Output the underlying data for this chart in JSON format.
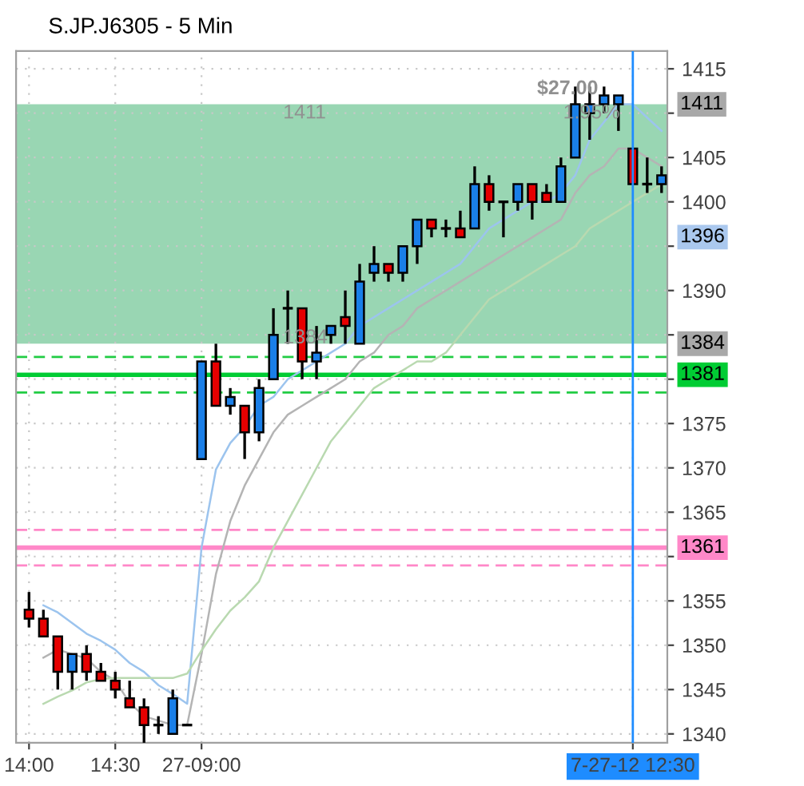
{
  "chart_data": {
    "type": "candlestick",
    "title": "S.JP.J6305 - 5 Min",
    "categories": [
      "14:00",
      null,
      null,
      null,
      null,
      null,
      "14:30",
      null,
      null,
      null,
      null,
      null,
      "27-09:00",
      null,
      null,
      null,
      null,
      null,
      null,
      null,
      null,
      null,
      null,
      null,
      null,
      null,
      null,
      null,
      null,
      null,
      null,
      null,
      null,
      null,
      null,
      null,
      null,
      null,
      null,
      null,
      null,
      null,
      "7-27-12 12:30",
      null,
      null
    ],
    "ohlc": [
      [
        1354,
        1356,
        1352,
        1353
      ],
      [
        1353,
        1354,
        1351,
        1351
      ],
      [
        1351,
        1351,
        1345,
        1347
      ],
      [
        1347,
        1349,
        1345,
        1349
      ],
      [
        1349,
        1350,
        1346,
        1347
      ],
      [
        1347,
        1348,
        1346,
        1346
      ],
      [
        1346,
        1347,
        1344,
        1345
      ],
      [
        1344,
        1346,
        1343,
        1343
      ],
      [
        1343,
        1344,
        1339,
        1341
      ],
      [
        1341,
        1342,
        1340,
        1341
      ],
      [
        1340,
        1345,
        1340,
        1344
      ],
      [
        1341,
        1341,
        1341,
        1341
      ],
      [
        1371,
        1382,
        1371,
        1382
      ],
      [
        1382,
        1384,
        1377,
        1377
      ],
      [
        1377,
        1379,
        1376,
        1378
      ],
      [
        1377,
        1377,
        1371,
        1374
      ],
      [
        1374,
        1380,
        1373,
        1379
      ],
      [
        1380,
        1388,
        1380,
        1385
      ],
      [
        1388,
        1390,
        1384,
        1388
      ],
      [
        1388,
        1388,
        1380,
        1382
      ],
      [
        1382,
        1386,
        1380,
        1383
      ],
      [
        1385,
        1386,
        1384,
        1386
      ],
      [
        1387,
        1390,
        1384,
        1386
      ],
      [
        1384,
        1393,
        1384,
        1391
      ],
      [
        1392,
        1395,
        1391,
        1393
      ],
      [
        1393,
        1393,
        1391,
        1392
      ],
      [
        1392,
        1395,
        1391,
        1395
      ],
      [
        1395,
        1398,
        1393,
        1398
      ],
      [
        1398,
        1398,
        1396,
        1397
      ],
      [
        1397,
        1398,
        1396,
        1397
      ],
      [
        1397,
        1399,
        1396,
        1396
      ],
      [
        1397,
        1404,
        1397,
        1402
      ],
      [
        1402,
        1403,
        1399,
        1400
      ],
      [
        1400,
        1400,
        1396,
        1400
      ],
      [
        1400,
        1402,
        1399,
        1402
      ],
      [
        1402,
        1402,
        1398,
        1400
      ],
      [
        1401,
        1402,
        1400,
        1400
      ],
      [
        1400,
        1405,
        1400,
        1404
      ],
      [
        1405,
        1413,
        1405,
        1411
      ],
      [
        1410,
        1413,
        1407,
        1411
      ],
      [
        1411,
        1413,
        1410,
        1412
      ],
      [
        1411,
        1412,
        1408,
        1412
      ],
      [
        1406,
        1406,
        1402,
        1402
      ],
      [
        1402,
        1405,
        1401,
        1402
      ],
      [
        1402,
        1404,
        1401,
        1403
      ]
    ],
    "colors": [
      "#e60000",
      "#e60000",
      "#e60000",
      "#1a7fe8",
      "#e60000",
      "#e60000",
      "#e60000",
      "#e60000",
      "#e60000",
      "#000000",
      "#1a7fe8",
      "#000000",
      "#1a7fe8",
      "#e60000",
      "#1a7fe8",
      "#e60000",
      "#1a7fe8",
      "#1a7fe8",
      "#000000",
      "#e60000",
      "#1a7fe8",
      "#1a7fe8",
      "#e60000",
      "#1a7fe8",
      "#1a7fe8",
      "#e60000",
      "#1a7fe8",
      "#1a7fe8",
      "#e60000",
      "#000000",
      "#e60000",
      "#1a7fe8",
      "#e60000",
      "#000000",
      "#1a7fe8",
      "#e60000",
      "#e60000",
      "#1a7fe8",
      "#1a7fe8",
      "#1a7fe8",
      "#1a7fe8",
      "#1a7fe8",
      "#e60000",
      "#000000",
      "#1a7fe8"
    ],
    "series": [
      {
        "type": "line",
        "color": "#9cc4ee",
        "values": [
          null,
          1354.5,
          1353.7,
          1352.5,
          1351.3,
          1350.5,
          1349.5,
          1348,
          1347,
          1345.5,
          1344.5,
          1343.4,
          1361,
          1369.8,
          1372.8,
          1374.6,
          1377,
          1378,
          1380,
          1381,
          1382,
          1383,
          1384,
          1386,
          1387,
          1388,
          1389,
          1390,
          1391,
          1392,
          1393,
          1395,
          1397,
          1398,
          1399,
          1400,
          1400,
          1401,
          1403,
          1407,
          1409,
          1411,
          1411,
          1409.5,
          1408
        ]
      },
      {
        "type": "line",
        "color": "#b4b4b4",
        "values": [
          null,
          1348.6,
          1349.5,
          1349,
          1348.5,
          1347,
          1346,
          1343.5,
          1342,
          1341.5,
          1341,
          1341,
          1349,
          1358,
          1364,
          1368,
          1371,
          1374,
          1376,
          1377,
          1378,
          1379,
          1380,
          1382,
          1383,
          1385,
          1386,
          1388,
          1389,
          1390,
          1391,
          1392,
          1393,
          1394,
          1395,
          1396,
          1397,
          1398,
          1401,
          1403,
          1404,
          1406,
          1406,
          1405,
          1404
        ]
      },
      {
        "type": "line",
        "color": "#b9d9b0",
        "values": [
          null,
          1343.4,
          1344.2,
          1344.9,
          1345.8,
          1346.2,
          1346.3,
          1346.3,
          1346.3,
          1346.3,
          1346.3,
          1346.8,
          1349.4,
          1351.8,
          1353.9,
          1355.4,
          1357.2,
          1361,
          1364,
          1367,
          1370,
          1373,
          1375,
          1377,
          1379,
          1380,
          1381,
          1382,
          1382,
          1383,
          1385,
          1387,
          1389,
          1390,
          1391,
          1392,
          1393,
          1394,
          1395,
          1397,
          1398,
          1399,
          1400,
          1401,
          1402
        ]
      }
    ],
    "ylim": [
      1339,
      1417
    ],
    "yticks": [
      1340,
      1345,
      1350,
      1355,
      {
        "value": 1360,
        "label": null
      },
      1365,
      1370,
      1375,
      {
        "value": 1380,
        "label": null
      },
      {
        "value": 1385,
        "label": null
      },
      1390,
      {
        "value": 1395,
        "label": null
      },
      1400,
      1405,
      {
        "value": 1410,
        "label": null
      },
      1415
    ],
    "grid": true,
    "bands": [
      {
        "axis": "y",
        "from": 1384,
        "to": 1411,
        "color": "#99d6b3"
      }
    ],
    "ref_lines": [
      {
        "axis": "y",
        "value": 1382.5,
        "color": "#22cc44",
        "line_style": "dashed"
      },
      {
        "axis": "y",
        "value": 1380.5,
        "color": "#00cc33",
        "label": "1381"
      },
      {
        "axis": "y",
        "value": 1378.5,
        "color": "#22cc44",
        "line_style": "dashed"
      },
      {
        "axis": "y",
        "value": 1363,
        "color": "#ff88c8",
        "line_style": "dashed"
      },
      {
        "axis": "y",
        "value": 1361,
        "color": "#ff88c8",
        "label": "1361"
      },
      {
        "axis": "y",
        "value": 1359,
        "color": "#ff88c8",
        "line_style": "dashed"
      },
      {
        "axis": "x",
        "value": "7-27-12 12:30",
        "color": "#1e8cff"
      }
    ],
    "annotations": [
      "$27.00",
      "1.95%",
      "1411",
      "1384",
      "1411",
      "1396",
      "1384"
    ]
  }
}
